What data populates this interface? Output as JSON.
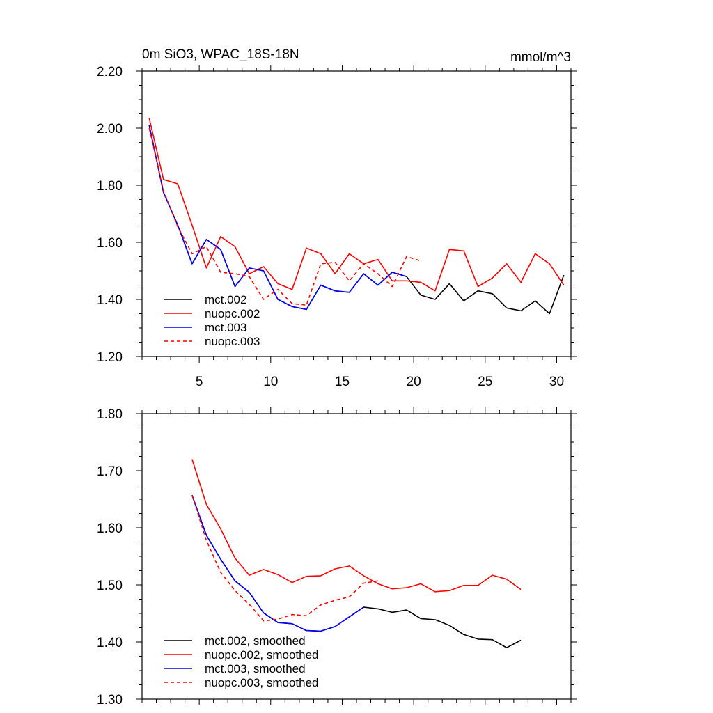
{
  "chart_data": [
    {
      "type": "line",
      "title": "0m SiO3, WPAC_18S-18N",
      "units": "mmol/m^3",
      "xlim": [
        1,
        31
      ],
      "ylim": [
        1.2,
        2.2
      ],
      "x_ticks": [
        5,
        10,
        15,
        20,
        25,
        30
      ],
      "y_ticks": [
        1.2,
        1.4,
        1.6,
        1.8,
        2.0,
        2.2
      ],
      "x_tick_labels": [
        "5",
        "10",
        "15",
        "20",
        "25",
        "30"
      ],
      "y_tick_labels": [
        "1.20",
        "1.40",
        "1.60",
        "1.80",
        "2.00",
        "2.20"
      ],
      "legend_position": "bottom-left",
      "series": [
        {
          "name": "mct.002",
          "color": "#000000",
          "dash": "solid",
          "x": [
            1.5,
            2.5,
            3.5,
            4.5,
            5.5,
            6.5,
            7.5,
            8.5,
            9.5,
            10.5,
            11.5,
            12.5,
            13.5,
            14.5,
            15.5,
            16.5,
            17.5,
            18.5,
            19.5,
            20.5,
            21.5,
            22.5,
            23.5,
            24.5,
            25.5,
            26.5,
            27.5,
            28.5,
            29.5,
            30.5
          ],
          "values": [
            2.01,
            1.775,
            1.66,
            1.525,
            1.61,
            1.575,
            1.445,
            1.51,
            1.5,
            1.4,
            1.375,
            1.365,
            1.45,
            1.43,
            1.425,
            1.49,
            1.45,
            1.495,
            1.48,
            1.415,
            1.4,
            1.455,
            1.395,
            1.43,
            1.42,
            1.37,
            1.36,
            1.395,
            1.35,
            1.485
          ]
        },
        {
          "name": "nuopc.002",
          "color": "#ff0000",
          "dash": "solid",
          "x": [
            1.5,
            2.5,
            3.5,
            4.5,
            5.5,
            6.5,
            7.5,
            8.5,
            9.5,
            10.5,
            11.5,
            12.5,
            13.5,
            14.5,
            15.5,
            16.5,
            17.5,
            18.5,
            19.5,
            20.5,
            21.5,
            22.5,
            23.5,
            24.5,
            25.5,
            26.5,
            27.5,
            28.5,
            29.5,
            30.5
          ],
          "values": [
            2.035,
            1.82,
            1.805,
            1.66,
            1.51,
            1.62,
            1.585,
            1.49,
            1.515,
            1.455,
            1.435,
            1.58,
            1.56,
            1.49,
            1.56,
            1.525,
            1.54,
            1.465,
            1.465,
            1.46,
            1.43,
            1.575,
            1.57,
            1.445,
            1.475,
            1.525,
            1.46,
            1.56,
            1.525,
            1.45
          ]
        },
        {
          "name": "mct.003",
          "color": "#0000ff",
          "dash": "solid",
          "x": [
            1.5,
            2.5,
            3.5,
            4.5,
            5.5,
            6.5,
            7.5,
            8.5,
            9.5,
            10.5,
            11.5,
            12.5,
            13.5,
            14.5,
            15.5,
            16.5,
            17.5,
            18.5,
            19.5
          ],
          "values": [
            2.01,
            1.775,
            1.66,
            1.525,
            1.61,
            1.575,
            1.445,
            1.51,
            1.5,
            1.4,
            1.375,
            1.365,
            1.45,
            1.43,
            1.425,
            1.49,
            1.45,
            1.495,
            1.48
          ]
        },
        {
          "name": "nuopc.003",
          "color": "#ff0000",
          "dash": "dashed",
          "x": [
            1.5,
            2.5,
            3.5,
            4.5,
            5.5,
            6.5,
            7.5,
            8.5,
            9.5,
            10.5,
            11.5,
            12.5,
            13.5,
            14.5,
            15.5,
            16.5,
            17.5,
            18.5,
            19.5,
            20.5
          ],
          "values": [
            2.0,
            1.78,
            1.655,
            1.56,
            1.585,
            1.495,
            1.49,
            1.48,
            1.4,
            1.435,
            1.385,
            1.38,
            1.525,
            1.53,
            1.465,
            1.525,
            1.49,
            1.445,
            1.55,
            1.535
          ]
        }
      ]
    },
    {
      "type": "line",
      "xlim": [
        1,
        31
      ],
      "ylim": [
        1.3,
        1.8
      ],
      "x_ticks": [
        5,
        10,
        15,
        20,
        25,
        30
      ],
      "y_ticks": [
        1.3,
        1.4,
        1.5,
        1.6,
        1.7,
        1.8
      ],
      "y_tick_labels": [
        "1.30",
        "1.40",
        "1.50",
        "1.60",
        "1.70",
        "1.80"
      ],
      "legend_position": "bottom-left",
      "series": [
        {
          "name": "mct.002, smoothed",
          "color": "#000000",
          "dash": "solid",
          "x": [
            4.5,
            5.5,
            6.5,
            7.5,
            8.5,
            9.5,
            10.5,
            11.5,
            12.5,
            13.5,
            14.5,
            15.5,
            16.5,
            17.5,
            18.5,
            19.5,
            20.5,
            21.5,
            22.5,
            23.5,
            24.5,
            25.5,
            26.5,
            27.5
          ],
          "values": [
            1.657,
            1.587,
            1.545,
            1.507,
            1.487,
            1.451,
            1.434,
            1.432,
            1.42,
            1.419,
            1.427,
            1.444,
            1.461,
            1.458,
            1.452,
            1.456,
            1.441,
            1.439,
            1.429,
            1.413,
            1.405,
            1.404,
            1.39,
            1.403
          ]
        },
        {
          "name": "nuopc.002, smoothed",
          "color": "#ff0000",
          "dash": "solid",
          "x": [
            4.5,
            5.5,
            6.5,
            7.5,
            8.5,
            9.5,
            10.5,
            11.5,
            12.5,
            13.5,
            14.5,
            15.5,
            16.5,
            17.5,
            18.5,
            19.5,
            20.5,
            21.5,
            22.5,
            23.5,
            24.5,
            25.5,
            26.5,
            27.5
          ],
          "values": [
            1.72,
            1.641,
            1.598,
            1.547,
            1.517,
            1.527,
            1.518,
            1.504,
            1.515,
            1.516,
            1.528,
            1.533,
            1.516,
            1.502,
            1.493,
            1.495,
            1.502,
            1.488,
            1.49,
            1.499,
            1.499,
            1.517,
            1.51,
            1.492
          ]
        },
        {
          "name": "mct.003, smoothed",
          "color": "#0000ff",
          "dash": "solid",
          "x": [
            4.5,
            5.5,
            6.5,
            7.5,
            8.5,
            9.5,
            10.5,
            11.5,
            12.5,
            13.5,
            14.5,
            15.5,
            16.5
          ],
          "values": [
            1.657,
            1.587,
            1.545,
            1.507,
            1.487,
            1.451,
            1.434,
            1.432,
            1.42,
            1.419,
            1.427,
            1.444,
            1.461
          ]
        },
        {
          "name": "nuopc.003, smoothed",
          "color": "#ff0000",
          "dash": "dashed",
          "x": [
            4.5,
            5.5,
            6.5,
            7.5,
            8.5,
            9.5,
            10.5,
            11.5,
            12.5,
            13.5,
            14.5,
            15.5,
            16.5,
            17.5
          ],
          "values": [
            1.657,
            1.578,
            1.522,
            1.49,
            1.466,
            1.437,
            1.44,
            1.448,
            1.446,
            1.465,
            1.473,
            1.479,
            1.503,
            1.507
          ]
        }
      ]
    }
  ]
}
